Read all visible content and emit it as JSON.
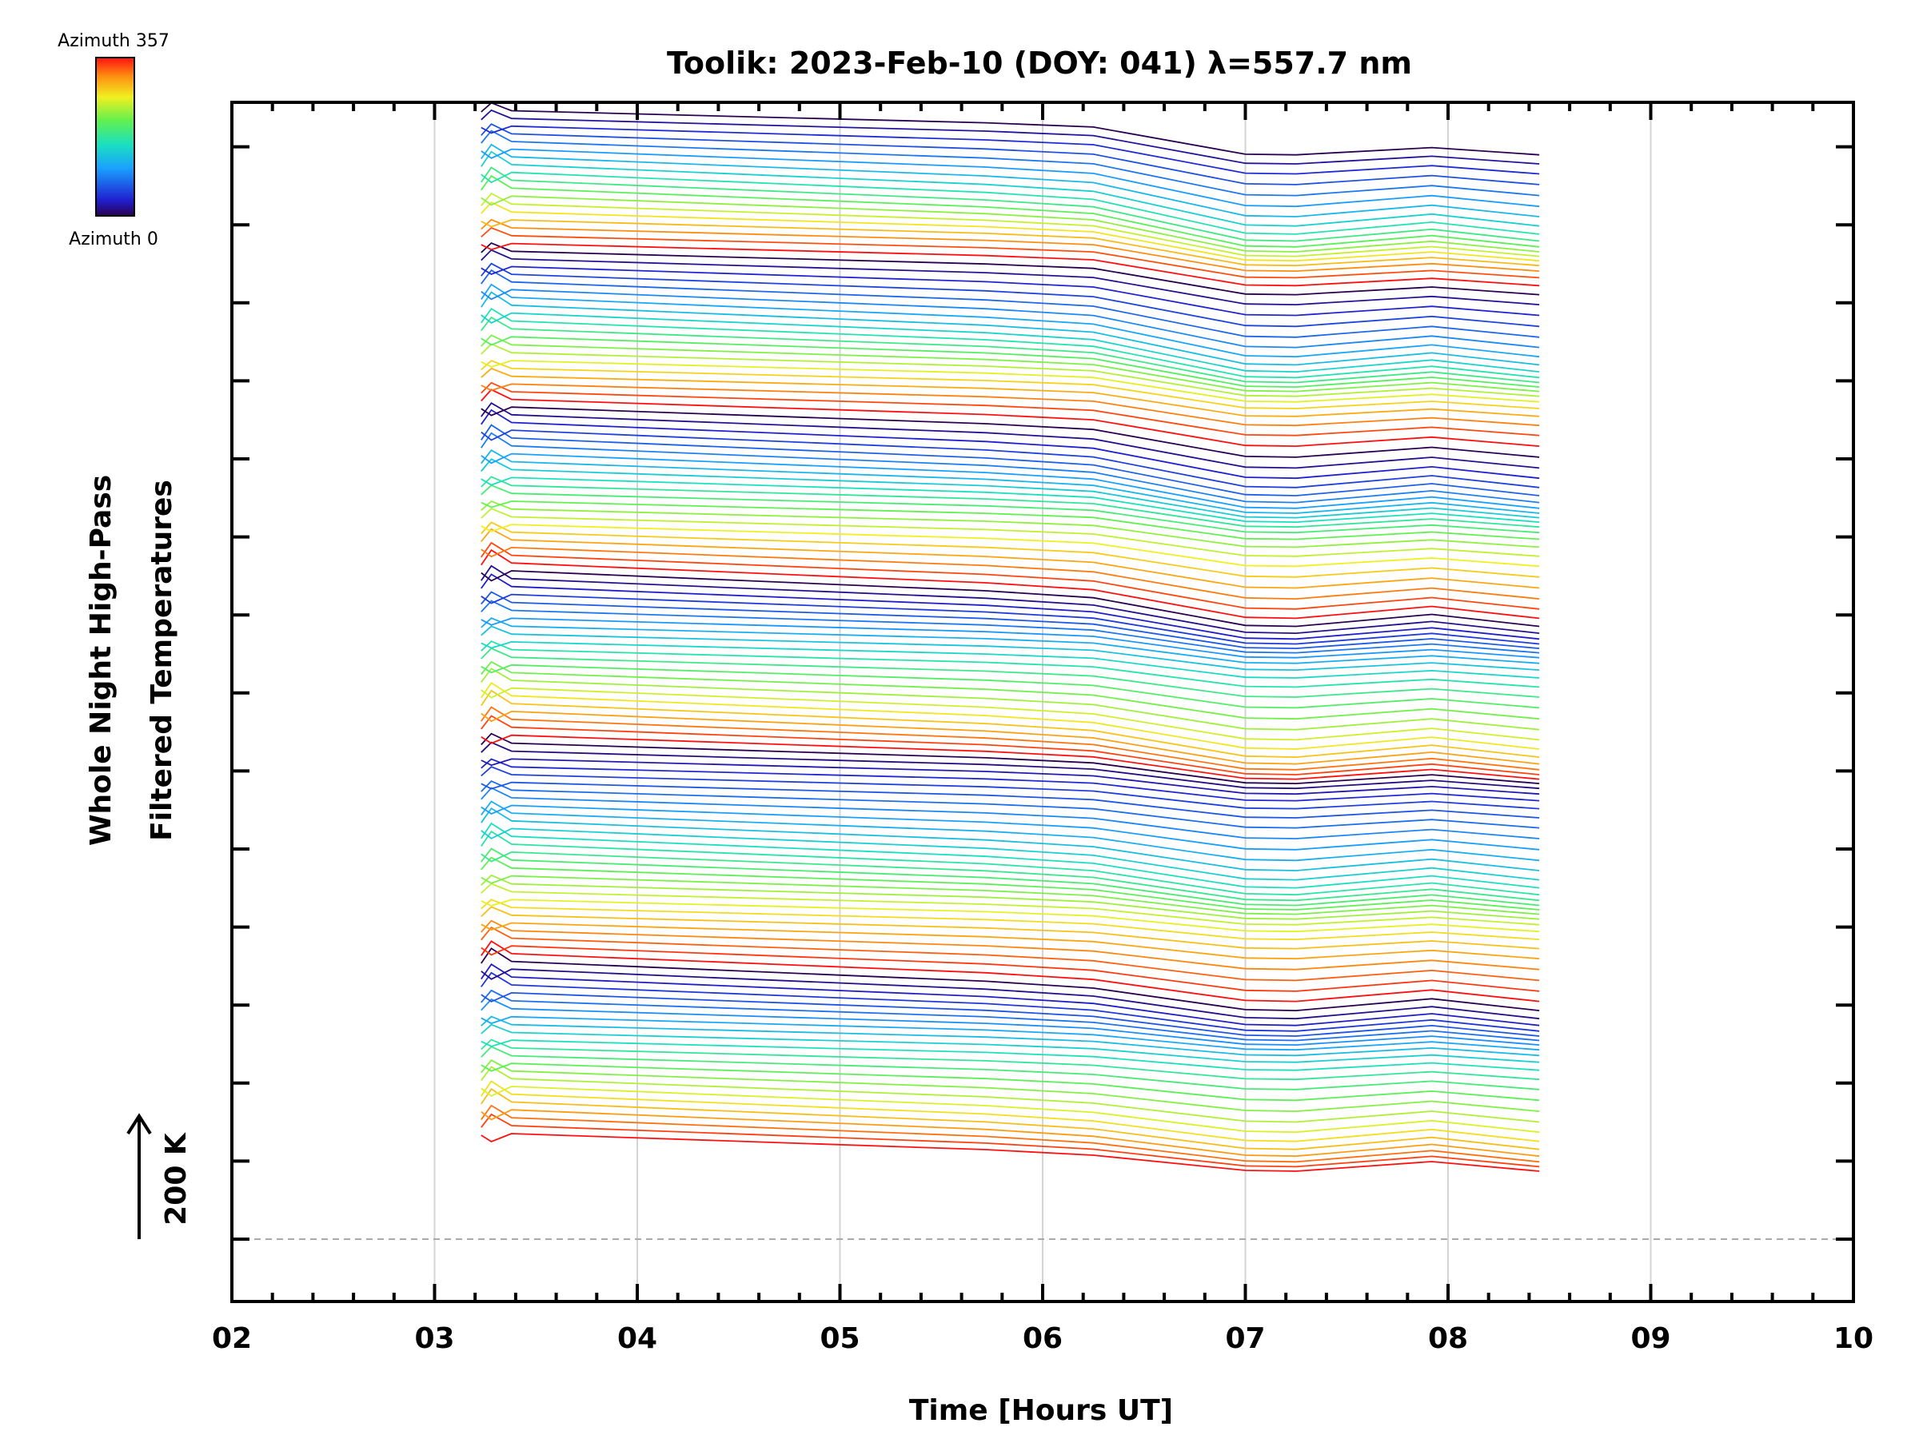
{
  "chart_data": {
    "type": "line",
    "title": "Toolik: 2023-Feb-10 (DOY: 041) λ=557.7 nm",
    "xlabel": "Time [Hours UT]",
    "ylabel_line1": "Whole Night High-Pass",
    "ylabel_line2": "Filtered Temperatures",
    "scale_label": "200 K",
    "colorbar": {
      "max_label": "Azimuth 357",
      "min_label": "Azimuth 0"
    },
    "x_ticks": [
      "02",
      "03",
      "04",
      "05",
      "06",
      "07",
      "08",
      "09",
      "10"
    ],
    "xlim": [
      2,
      10
    ],
    "grid": true,
    "colormap": "rainbow",
    "sample_times_hours": [
      3.23,
      3.28,
      3.38,
      5.72,
      6.25,
      7.0,
      7.25,
      7.92,
      8.45
    ],
    "base_profile": [
      0,
      15,
      2,
      -18,
      -25,
      -44,
      -45,
      -33,
      -45
    ],
    "trace_count": 132,
    "groups": [
      {
        "first_trace": 0,
        "last_trace": 22,
        "traces": 23
      },
      {
        "first_trace": 23,
        "last_trace": 50,
        "traces": 28
      },
      {
        "first_trace": 51,
        "last_trace": 72,
        "traces": 22
      },
      {
        "first_trace": 73,
        "last_trace": 93,
        "traces": 21
      },
      {
        "first_trace": 94,
        "last_trace": 113,
        "traces": 20
      },
      {
        "first_trace": 114,
        "last_trace": 131,
        "traces": 18
      }
    ]
  }
}
